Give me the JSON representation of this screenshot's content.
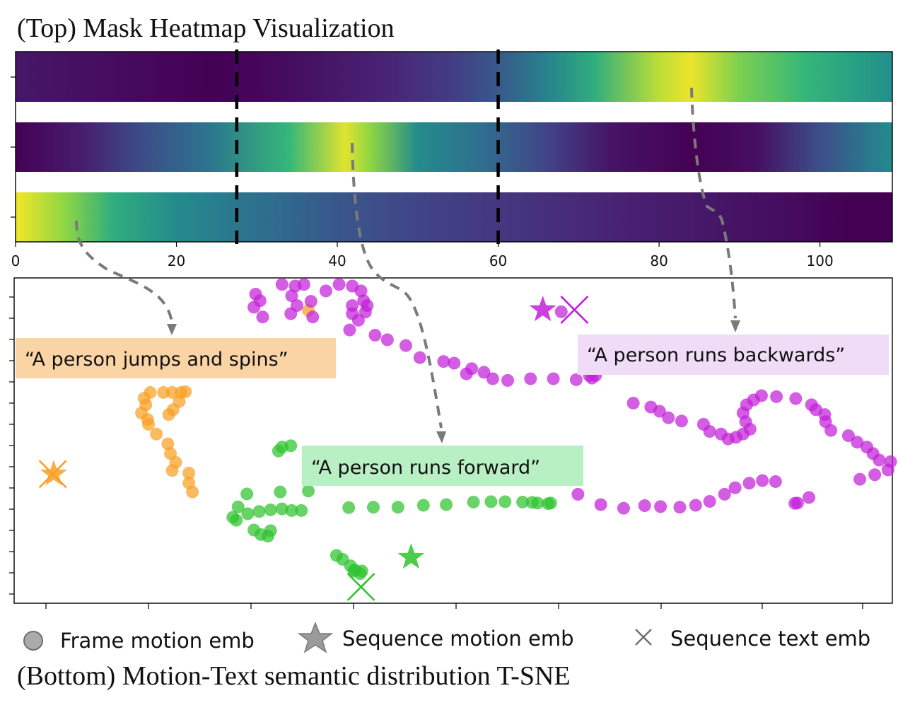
{
  "titles": {
    "top": "(Top) Mask Heatmap Visualization",
    "bottom": "(Bottom) Motion-Text semantic distribution T-SNE"
  },
  "legend": {
    "frame": "Frame motion emb",
    "sequence_motion": "Sequence motion emb",
    "sequence_text": "Sequence text emb"
  },
  "captions": {
    "jumps": "“A person jumps and spins”",
    "backwards": "“A person runs backwards”",
    "forward": "“A person runs forward”"
  },
  "colors": {
    "orange": "#f7a023",
    "magenta": "#c21ed8",
    "green": "#2ec42e",
    "gray": "#7a7a7a",
    "label_orange": "#fbd4a5",
    "label_purple": "#f1dcf8",
    "label_green": "#b8f0c4"
  },
  "chart_data": [
    {
      "type": "heatmap",
      "title": "(Top) Mask Heatmap Visualization",
      "colormap": "viridis",
      "xlim": [
        0,
        109
      ],
      "xticks": [
        0,
        20,
        40,
        60,
        80,
        100
      ],
      "dividers_x": [
        27.5,
        60
      ],
      "rows": [
        {
          "stops": [
            [
              0,
              0.08
            ],
            [
              10,
              0.05
            ],
            [
              24,
              0.0
            ],
            [
              30,
              0.02
            ],
            [
              38,
              0.07
            ],
            [
              46,
              0.13
            ],
            [
              54,
              0.22
            ],
            [
              60,
              0.35
            ],
            [
              66,
              0.55
            ],
            [
              72,
              0.72
            ],
            [
              80,
              0.93
            ],
            [
              84,
              0.98
            ],
            [
              90,
              0.85
            ],
            [
              98,
              0.75
            ],
            [
              104,
              0.68
            ],
            [
              109,
              0.62
            ]
          ]
        },
        {
          "stops": [
            [
              0,
              0.0
            ],
            [
              8,
              0.1
            ],
            [
              16,
              0.3
            ],
            [
              24,
              0.48
            ],
            [
              34,
              0.75
            ],
            [
              41,
              0.97
            ],
            [
              44,
              0.88
            ],
            [
              50,
              0.6
            ],
            [
              58,
              0.45
            ],
            [
              66,
              0.25
            ],
            [
              74,
              0.07
            ],
            [
              84,
              0.0
            ],
            [
              92,
              0.05
            ],
            [
              100,
              0.3
            ],
            [
              106,
              0.5
            ],
            [
              109,
              0.6
            ]
          ]
        },
        {
          "stops": [
            [
              0,
              0.99
            ],
            [
              6,
              0.88
            ],
            [
              12,
              0.72
            ],
            [
              20,
              0.6
            ],
            [
              27,
              0.5
            ],
            [
              34,
              0.42
            ],
            [
              40,
              0.34
            ],
            [
              48,
              0.27
            ],
            [
              56,
              0.22
            ],
            [
              66,
              0.17
            ],
            [
              76,
              0.12
            ],
            [
              86,
              0.08
            ],
            [
              96,
              0.04
            ],
            [
              103,
              0.0
            ],
            [
              109,
              0.0
            ]
          ]
        }
      ]
    },
    {
      "type": "scatter",
      "title": "(Bottom) Motion-Text semantic distribution T-SNE",
      "xlim": [
        0,
        100
      ],
      "ylim": [
        0,
        100
      ],
      "series": [
        {
          "name": "“A person jumps and spins”",
          "color": "#f7a023",
          "frame_points": [
            [
              15.5,
              64.8
            ],
            [
              17,
              64.8
            ],
            [
              18,
              64.8
            ],
            [
              19,
              64.8
            ],
            [
              19.5,
              65
            ],
            [
              14.8,
              63
            ],
            [
              15,
              61
            ],
            [
              18.8,
              62
            ],
            [
              14.5,
              58.5
            ],
            [
              18.1,
              59.5
            ],
            [
              15.2,
              56.5
            ],
            [
              17.6,
              58
            ],
            [
              15.3,
              55
            ],
            [
              16.2,
              52
            ],
            [
              17.5,
              49
            ],
            [
              17.8,
              46
            ],
            [
              19.9,
              40
            ],
            [
              18,
              40.8
            ],
            [
              18.4,
              43.3
            ],
            [
              19.9,
              37
            ],
            [
              20.3,
              34.2
            ],
            [
              33.5,
              90
            ]
          ],
          "sequence_motion": [
            4.5,
            39.7
          ],
          "sequence_text": [
            4.4,
            39.7
          ]
        },
        {
          "name": "“A person runs backwards”",
          "color": "#c21ed8",
          "frame_points": [
            [
              27.5,
              95
            ],
            [
              28,
              93
            ],
            [
              27.3,
              91
            ],
            [
              28.3,
              88
            ],
            [
              30.5,
              98
            ],
            [
              32,
              97.5
            ],
            [
              33,
              98
            ],
            [
              31.6,
              94.5
            ],
            [
              32.2,
              91.5
            ],
            [
              33.8,
              92.8
            ],
            [
              31.5,
              89
            ],
            [
              34,
              88
            ],
            [
              35.5,
              96
            ],
            [
              37,
              98
            ],
            [
              38.5,
              97.5
            ],
            [
              39.5,
              96
            ],
            [
              39.8,
              93
            ],
            [
              38.5,
              91.5
            ],
            [
              40.2,
              91.5
            ],
            [
              40,
              89.5
            ],
            [
              38.5,
              89
            ],
            [
              39.2,
              87
            ],
            [
              38.2,
              84
            ],
            [
              41.1,
              82.4
            ],
            [
              42.5,
              81
            ],
            [
              44.6,
              79.2
            ],
            [
              46.2,
              75.5
            ],
            [
              48.9,
              74.3
            ],
            [
              50.1,
              73.8
            ],
            [
              52.1,
              72.1
            ],
            [
              51.5,
              70.5
            ],
            [
              53.5,
              71
            ],
            [
              54.5,
              69
            ],
            [
              56.2,
              68.5
            ],
            [
              58.8,
              69
            ],
            [
              61.4,
              69
            ],
            [
              64,
              68.7
            ],
            [
              65.5,
              70
            ],
            [
              65.8,
              69.2
            ],
            [
              66.2,
              70
            ],
            [
              62.3,
              89.6
            ],
            [
              70.5,
              61.5
            ],
            [
              72.5,
              60.3
            ],
            [
              74.5,
              57
            ],
            [
              73.5,
              59
            ],
            [
              76,
              56
            ],
            [
              78.5,
              55
            ],
            [
              79.2,
              52.8
            ],
            [
              80.5,
              52
            ],
            [
              81.3,
              50.5
            ],
            [
              82.2,
              51
            ],
            [
              83,
              52
            ],
            [
              83.8,
              53.5
            ],
            [
              83.3,
              55.8
            ],
            [
              83,
              58.5
            ],
            [
              83.4,
              61
            ],
            [
              84.2,
              62.5
            ],
            [
              85.1,
              63.8
            ],
            [
              86.8,
              63.5
            ],
            [
              89,
              62.9
            ],
            [
              90.8,
              61
            ],
            [
              91.3,
              59.5
            ],
            [
              92.3,
              58
            ],
            [
              92.4,
              55.8
            ],
            [
              93,
              53.1
            ],
            [
              95,
              51.5
            ],
            [
              96,
              49.5
            ],
            [
              97.1,
              48
            ],
            [
              97.8,
              46
            ],
            [
              98.5,
              44
            ],
            [
              99.8,
              43.5
            ],
            [
              99.5,
              41
            ],
            [
              98,
              39.5
            ],
            [
              96.3,
              38.1
            ],
            [
              86.7,
              37.4
            ],
            [
              85.2,
              37.7
            ],
            [
              83.7,
              36.9
            ],
            [
              82.1,
              35.5
            ],
            [
              80.9,
              33.5
            ],
            [
              79.2,
              31.3
            ],
            [
              77.6,
              30.1
            ],
            [
              75.8,
              29.5
            ],
            [
              73.6,
              29.7
            ],
            [
              71.8,
              30
            ],
            [
              69.4,
              29.2
            ],
            [
              66.8,
              30.3
            ],
            [
              64.2,
              33.5
            ],
            [
              90.5,
              32.5
            ],
            [
              89.2,
              30.8
            ],
            [
              88.9,
              30.7
            ]
          ],
          "sequence_motion": [
            60.2,
            90.2
          ],
          "sequence_text": [
            63.8,
            90.2
          ]
        },
        {
          "name": "“A person runs forward”",
          "color": "#2ec42e",
          "frame_points": [
            [
              31.5,
              48.4
            ],
            [
              30.5,
              48
            ],
            [
              30.1,
              46.8
            ],
            [
              26.5,
              33.6
            ],
            [
              25.5,
              29.6
            ],
            [
              24.9,
              26.4
            ],
            [
              25.3,
              25.5
            ],
            [
              26.6,
              27.5
            ],
            [
              27.9,
              28.2
            ],
            [
              29.2,
              28.7
            ],
            [
              30.5,
              29
            ],
            [
              31.6,
              28.5
            ],
            [
              32.7,
              28.5
            ],
            [
              33.5,
              34.5
            ],
            [
              30.3,
              34.2
            ],
            [
              28.1,
              21.1
            ],
            [
              27.3,
              22.5
            ],
            [
              29.2,
              22.3
            ],
            [
              28.9,
              20.6
            ],
            [
              36.7,
              14.7
            ],
            [
              37.4,
              13.5
            ],
            [
              38.3,
              11.5
            ],
            [
              38.8,
              10.2
            ],
            [
              39.4,
              9.1
            ],
            [
              39.6,
              9.9
            ],
            [
              38.7,
              9.9
            ],
            [
              38.1,
              29.4
            ],
            [
              40.9,
              29.5
            ],
            [
              43.7,
              29.5
            ],
            [
              46.6,
              30.1
            ],
            [
              49.2,
              30.3
            ],
            [
              52.3,
              31.1
            ],
            [
              54.3,
              31.2
            ],
            [
              55.9,
              31.2
            ],
            [
              57.9,
              31.1
            ],
            [
              59,
              31
            ],
            [
              59.6,
              30.8
            ],
            [
              60.8,
              30.6
            ],
            [
              61.1,
              30.8
            ]
          ],
          "sequence_motion": [
            45.2,
            14.1
          ],
          "sequence_text": [
            39.5,
            5
          ]
        }
      ]
    }
  ]
}
